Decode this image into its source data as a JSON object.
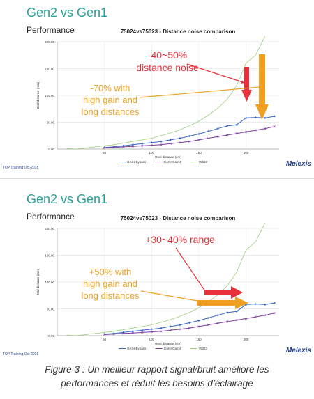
{
  "slides": [
    {
      "title": "Gen2 vs Gen1",
      "subtitle": "Performance",
      "footer": "TOP Training Oct-2018",
      "logo": "Melexis",
      "annotation_1": [
        "-40~50%",
        "distance noise"
      ],
      "annotation_2": [
        "-70% with",
        "high gain and",
        "long distances"
      ],
      "annotation_1_color": "#e8313a",
      "annotation_2_color": "#f0a020"
    },
    {
      "title": "Gen2 vs Gen1",
      "subtitle": "Performance",
      "footer": "TOP Training Oct-2018",
      "logo": "Melexis",
      "annotation_1": [
        "+30~40% range"
      ],
      "annotation_2": [
        "+50% with",
        "high gain and",
        "long distances"
      ],
      "annotation_1_color": "#e8313a",
      "annotation_2_color": "#f0a020"
    }
  ],
  "caption": [
    "Figure 3 : Un meilleur rapport signal/bruit améliore les",
    "performances et réduit les besoins d’éclairage"
  ],
  "chart_data": [
    {
      "type": "line",
      "title": "75024vs75023 - Distance noise comparison",
      "xlabel": "Real distance (cm)",
      "ylabel": "Zstd distance (mm)",
      "xlim": [
        0,
        235
      ],
      "ylim": [
        0,
        200
      ],
      "xticks": [
        50,
        100,
        150,
        200
      ],
      "yticks": [
        0,
        50,
        100,
        150,
        200
      ],
      "ytick_labels": [
        "0.00",
        "50.00",
        "100.00",
        "150.00",
        "200.00"
      ],
      "grid": true,
      "legend_position": "bottom",
      "series": [
        {
          "name": "GAIN-Bypass",
          "color": "#3a66c4",
          "marker": "diamond",
          "x": [
            50,
            60,
            70,
            80,
            90,
            100,
            110,
            120,
            130,
            140,
            150,
            160,
            170,
            180,
            190,
            200,
            210,
            220,
            230
          ],
          "y": [
            3,
            4,
            6,
            8,
            10,
            12,
            14,
            17,
            20,
            24,
            28,
            33,
            38,
            43,
            45,
            58,
            59,
            58,
            61
          ]
        },
        {
          "name": "GAIN-Gain4",
          "color": "#7a3e9d",
          "marker": "x",
          "x": [
            50,
            60,
            70,
            80,
            90,
            100,
            110,
            120,
            130,
            140,
            150,
            160,
            170,
            180,
            190,
            200,
            210,
            220,
            230
          ],
          "y": [
            2,
            3,
            4,
            5,
            6,
            7,
            8,
            10,
            12,
            14,
            17,
            20,
            23,
            26,
            29,
            32,
            35,
            38,
            42
          ]
        },
        {
          "name": "75023",
          "color": "#9ccc7a",
          "marker": "none",
          "x": [
            10,
            20,
            30,
            40,
            50,
            60,
            70,
            80,
            90,
            100,
            110,
            120,
            130,
            140,
            150,
            160,
            170,
            180,
            190,
            200,
            210,
            220
          ],
          "y": [
            1,
            0,
            2,
            4,
            6,
            8,
            11,
            14,
            17,
            20,
            25,
            30,
            36,
            43,
            52,
            63,
            76,
            93,
            118,
            160,
            175,
            210
          ]
        }
      ]
    },
    {
      "type": "line",
      "title": "75024vs75023 - Distance noise comparison",
      "xlabel": "Real distance (cm)",
      "ylabel": "Zstd distance (mm)",
      "xlim": [
        0,
        235
      ],
      "ylim": [
        0,
        200
      ],
      "xticks": [
        50,
        100,
        150,
        200
      ],
      "yticks": [
        0,
        50,
        100,
        150,
        200
      ],
      "ytick_labels": [
        "0.00",
        "50.00",
        "100.00",
        "150.00",
        "200.00"
      ],
      "grid": true,
      "legend_position": "bottom",
      "series": [
        {
          "name": "GAIN-Bypass",
          "color": "#3a66c4",
          "marker": "diamond",
          "x": [
            50,
            60,
            70,
            80,
            90,
            100,
            110,
            120,
            130,
            140,
            150,
            160,
            170,
            180,
            190,
            200,
            210,
            220,
            230
          ],
          "y": [
            3,
            4,
            6,
            8,
            10,
            12,
            14,
            17,
            20,
            24,
            28,
            33,
            38,
            43,
            45,
            58,
            59,
            58,
            61
          ]
        },
        {
          "name": "GAIN-Gain4",
          "color": "#7a3e9d",
          "marker": "x",
          "x": [
            50,
            60,
            70,
            80,
            90,
            100,
            110,
            120,
            130,
            140,
            150,
            160,
            170,
            180,
            190,
            200,
            210,
            220,
            230
          ],
          "y": [
            2,
            3,
            4,
            5,
            6,
            7,
            8,
            10,
            12,
            14,
            17,
            20,
            23,
            26,
            29,
            32,
            35,
            38,
            42
          ]
        },
        {
          "name": "75023",
          "color": "#9ccc7a",
          "marker": "none",
          "x": [
            10,
            20,
            30,
            40,
            50,
            60,
            70,
            80,
            90,
            100,
            110,
            120,
            130,
            140,
            150,
            160,
            170,
            180,
            190,
            200,
            210,
            220
          ],
          "y": [
            1,
            0,
            2,
            4,
            6,
            8,
            11,
            14,
            17,
            20,
            25,
            30,
            36,
            43,
            52,
            63,
            76,
            93,
            118,
            160,
            175,
            210
          ]
        }
      ]
    }
  ]
}
